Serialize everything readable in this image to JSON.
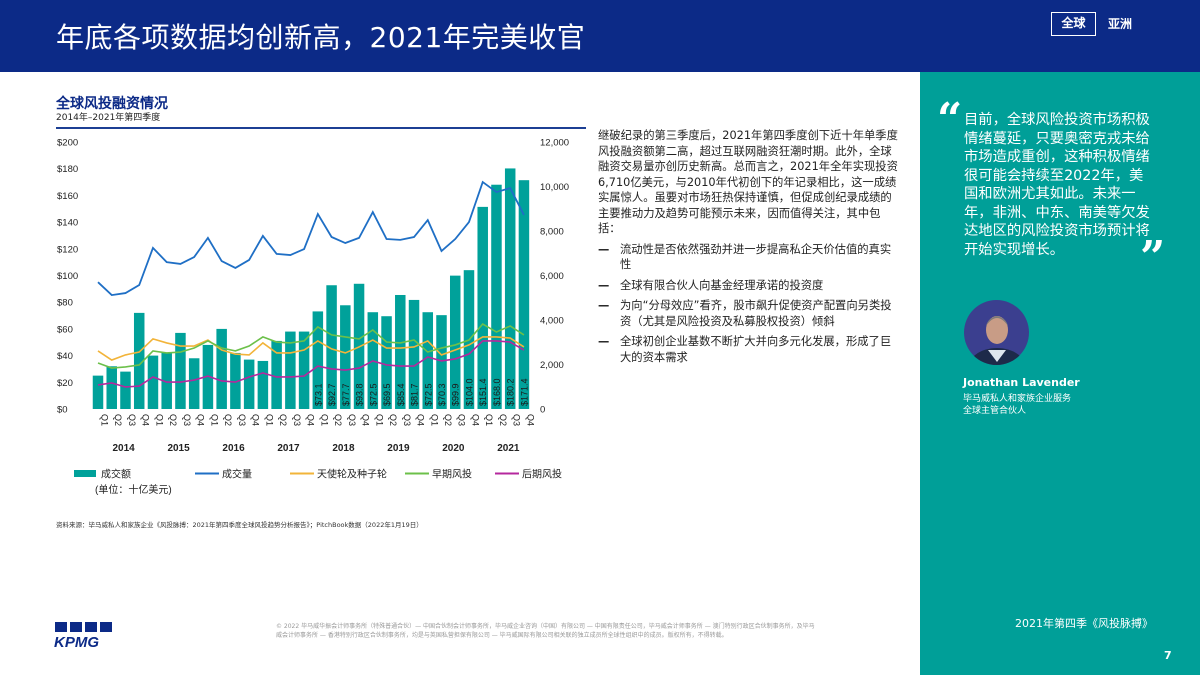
{
  "header": {
    "title": "年底各项数据均创新高，2021年完美收官",
    "tabs": [
      "全球",
      "亚洲"
    ],
    "active_tab": "全球"
  },
  "chart_section": {
    "title": "全球风投融资情况",
    "subtitle": "2014年–2021年第四季度"
  },
  "chart_data": {
    "type": "bar+line",
    "title": "全球风投融资情况",
    "subtitle": "2014年–2021年第四季度",
    "categories": [
      "Q1",
      "Q2",
      "Q3",
      "Q4",
      "Q1",
      "Q2",
      "Q3",
      "Q4",
      "Q1",
      "Q2",
      "Q3",
      "Q4",
      "Q1",
      "Q2",
      "Q3",
      "Q4",
      "Q1",
      "Q2",
      "Q3",
      "Q4",
      "Q1",
      "Q2",
      "Q3",
      "Q4",
      "Q1",
      "Q2",
      "Q3",
      "Q4",
      "Q1",
      "Q2",
      "Q3",
      "Q4"
    ],
    "years": [
      "2014",
      "2015",
      "2016",
      "2017",
      "2018",
      "2019",
      "2020",
      "2021"
    ],
    "left_axis": {
      "ylim": [
        0,
        200
      ],
      "ticks": [
        "$0",
        "$20",
        "$40",
        "$60",
        "$80",
        "$100",
        "$120",
        "$140",
        "$160",
        "$180",
        "$200"
      ]
    },
    "right_axis": {
      "ylim": [
        0,
        12000
      ],
      "ticks": [
        "0",
        "2,000",
        "4,000",
        "6,000",
        "8,000",
        "10,000",
        "12,000"
      ]
    },
    "series": [
      {
        "name": "成交额",
        "unit": "(单位：十亿美元)",
        "type": "bar",
        "axis": "left",
        "color": "#00a19a",
        "values": [
          25,
          32,
          28,
          72,
          40,
          42,
          57,
          38,
          48,
          60,
          42,
          37,
          36,
          51,
          58,
          58,
          73.1,
          92.7,
          77.7,
          93.8,
          72.5,
          69.5,
          85.4,
          81.7,
          72.5,
          70.3,
          99.9,
          104.0,
          151.4,
          168.0,
          180.2,
          171.4
        ],
        "labels": [
          "",
          "",
          "",
          "",
          "",
          "",
          "",
          "",
          "",
          "",
          "",
          "",
          "",
          "",
          "",
          "",
          "$73.1",
          "$92.7",
          "$77.7",
          "$93.8",
          "$72.5",
          "$69.5",
          "$85.4",
          "$81.7",
          "$72.5",
          "$70.3",
          "$99.9",
          "$104.0",
          "$151.4",
          "$168.0",
          "$180.2",
          "$171.4"
        ]
      },
      {
        "name": "成交量",
        "type": "line",
        "axis": "right",
        "color": "#1f6fc5",
        "values": [
          5700,
          5120,
          5210,
          5570,
          7240,
          6600,
          6520,
          6830,
          7690,
          6650,
          6340,
          6700,
          7780,
          6970,
          6920,
          7190,
          8760,
          7730,
          7460,
          7690,
          8850,
          7640,
          7600,
          7730,
          8490,
          7100,
          7640,
          8400,
          10200,
          9750,
          9930,
          8720
        ]
      },
      {
        "name": "天使轮及种子轮",
        "type": "line",
        "axis": "right",
        "color": "#f2b43a",
        "values": [
          2610,
          2200,
          2430,
          2560,
          3150,
          2970,
          2830,
          2830,
          3100,
          2650,
          2470,
          2430,
          2970,
          2520,
          2520,
          2650,
          3060,
          2700,
          2520,
          2790,
          3100,
          2740,
          2740,
          2790,
          3060,
          2430,
          2650,
          2880,
          3240,
          3240,
          3190,
          2790
        ]
      },
      {
        "name": "早期风投",
        "type": "line",
        "axis": "right",
        "color": "#6cc04a",
        "values": [
          2070,
          1840,
          1890,
          1980,
          2610,
          2520,
          2560,
          2740,
          3060,
          2740,
          2610,
          2830,
          3240,
          3010,
          2970,
          3060,
          3690,
          3330,
          3240,
          3150,
          3550,
          3010,
          2970,
          3100,
          2560,
          2740,
          2880,
          3100,
          3820,
          3460,
          3730,
          3330
        ]
      },
      {
        "name": "后期风投",
        "type": "line",
        "axis": "right",
        "color": "#b5289e",
        "values": [
          1080,
          1170,
          990,
          1030,
          1440,
          1210,
          1210,
          1300,
          1480,
          1260,
          1210,
          1440,
          1620,
          1440,
          1440,
          1480,
          1930,
          1800,
          1750,
          1840,
          2160,
          1980,
          1930,
          1930,
          2340,
          2160,
          2250,
          2470,
          3060,
          3060,
          3010,
          2650
        ]
      }
    ],
    "legend": "bottom",
    "grid": false
  },
  "body": {
    "intro": "继破纪录的第三季度后，2021年第四季度创下近十年单季度风投融资额第二高，超过互联网融资狂潮时期。此外，全球融资交易量亦创历史新高。总而言之，2021年全年实现投资6,710亿美元，与2010年代初创下的年记录相比，这一成绩实属惊人。虽要对市场狂热保持谨慎，但促成创纪录成绩的主要推动力及趋势可能预示未来，因而值得关注，其中包括：",
    "bullet_marker": "—",
    "bullets": [
      "流动性是否依然强劲并进一步提高私企天价估值的真实性",
      "全球有限合伙人向基金经理承诺的投资度",
      "为向“分母效应”看齐，股市飙升促使资产配置向另类投资（尤其是风险投资及私募股权投资）倾斜",
      "全球初创企业基数不断扩大并向多元化发展，形成了巨大的资本需求"
    ]
  },
  "source": "资料来源：毕马威私人和家族企业《风投脉搏：2021年第四季度全球风投趋势分析报告》；PitchBook数据（2022年1月19日）",
  "copyright": "© 2022 毕马威华振会计师事务所（特殊普通合伙）— 中国合伙制会计师事务所，毕马威企业咨询（中国）有限公司 — 中国有限责任公司，毕马威会计师事务所 — 澳门特别行政区合伙制事务所，及毕马威会计师事务所 — 香港特别行政区合伙制事务所，均是与英国私营担保有限公司 — 毕马威国际有限公司相关联的独立成员所全球性组织中的成员。版权所有，不得转载。",
  "logo": "KPMG",
  "sidebar": {
    "quote_open": "“",
    "quote_close": "”",
    "quote": "目前，全球风险投资市场积极情绪蔓延，只要奥密克戎未给市场造成重创，这种积极情绪很可能会持续至2022年，美国和欧洲尤其如此。未来一年，非洲、中东、南美等欠发达地区的风险投资市场预计将开始实现增长。",
    "name": "Jonathan Lavender",
    "role1": "毕马威私人和家族企业服务",
    "role2": "全球主管合伙人",
    "publication": "2021年第四季《风投脉搏》",
    "page": "7"
  }
}
